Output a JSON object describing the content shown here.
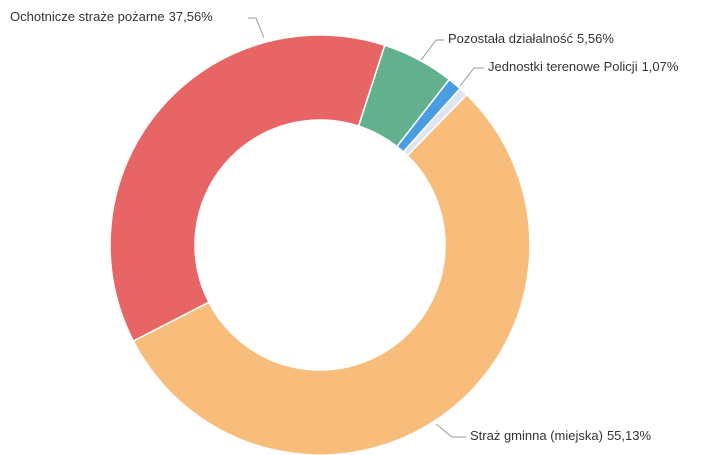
{
  "chart_data": {
    "type": "donut",
    "categories": [
      "Straż gminna (miejska)",
      "Ochotnicze straże pożarne",
      "Pozostała działalność",
      "Jednostki terenowe Policji",
      null
    ],
    "values": [
      55.13,
      37.56,
      5.56,
      1.07,
      0.68
    ],
    "value_labels": [
      "55,13%",
      "37,56%",
      "5,56%",
      "1,07%",
      null
    ],
    "colors": [
      "#f8bd7a",
      "#e86566",
      "#62b08e",
      "#4a9de0",
      "#dde6f0"
    ]
  }
}
